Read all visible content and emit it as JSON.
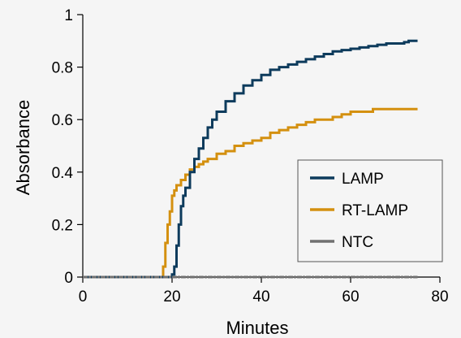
{
  "chart_data": {
    "type": "line",
    "title": "",
    "xlabel": "Minutes",
    "ylabel": "Absorbance",
    "xlim": [
      0,
      80
    ],
    "ylim": [
      0,
      1
    ],
    "xticks": [
      0,
      20,
      40,
      60,
      80
    ],
    "yticks": [
      0,
      0.2,
      0.4,
      0.6,
      0.8,
      1
    ],
    "ytick_labels": [
      "0",
      "0.2",
      "0.4",
      "0.6",
      "0.8",
      "1"
    ],
    "xtick_labels": [
      "0",
      "20",
      "40",
      "60",
      "80"
    ],
    "grid": false,
    "legend_position": "right",
    "series": [
      {
        "name": "LAMP",
        "color": "#0d3b5c",
        "x": [
          0,
          19.5,
          20,
          20.5,
          21,
          21.5,
          22,
          22.5,
          23,
          24,
          25,
          26,
          27,
          28,
          29,
          30,
          32,
          34,
          36,
          38,
          40,
          42,
          44,
          46,
          48,
          50,
          52,
          54,
          56,
          58,
          60,
          62,
          64,
          66,
          68,
          70,
          72,
          73,
          75
        ],
        "y": [
          0,
          0,
          0.01,
          0.04,
          0.12,
          0.2,
          0.27,
          0.31,
          0.34,
          0.4,
          0.45,
          0.49,
          0.53,
          0.57,
          0.6,
          0.63,
          0.67,
          0.7,
          0.73,
          0.75,
          0.77,
          0.79,
          0.8,
          0.81,
          0.82,
          0.83,
          0.84,
          0.85,
          0.86,
          0.865,
          0.87,
          0.875,
          0.88,
          0.885,
          0.89,
          0.89,
          0.895,
          0.9,
          0.9
        ]
      },
      {
        "name": "RT-LAMP",
        "color": "#d4900f",
        "x": [
          0,
          17.5,
          18,
          18.5,
          19,
          19.5,
          20,
          20.5,
          21,
          22,
          23,
          24,
          25,
          26,
          27,
          28,
          30,
          32,
          34,
          36,
          38,
          40,
          42,
          44,
          46,
          48,
          50,
          52,
          54,
          56,
          58,
          60,
          62,
          65,
          70,
          75
        ],
        "y": [
          0,
          0,
          0.04,
          0.13,
          0.2,
          0.25,
          0.31,
          0.33,
          0.35,
          0.37,
          0.39,
          0.41,
          0.42,
          0.43,
          0.44,
          0.45,
          0.47,
          0.48,
          0.5,
          0.51,
          0.52,
          0.53,
          0.55,
          0.56,
          0.57,
          0.58,
          0.59,
          0.6,
          0.6,
          0.61,
          0.62,
          0.63,
          0.63,
          0.64,
          0.64,
          0.64
        ]
      },
      {
        "name": "NTC",
        "color": "#707070",
        "x": [
          0,
          75
        ],
        "y": [
          0,
          0
        ]
      }
    ]
  }
}
